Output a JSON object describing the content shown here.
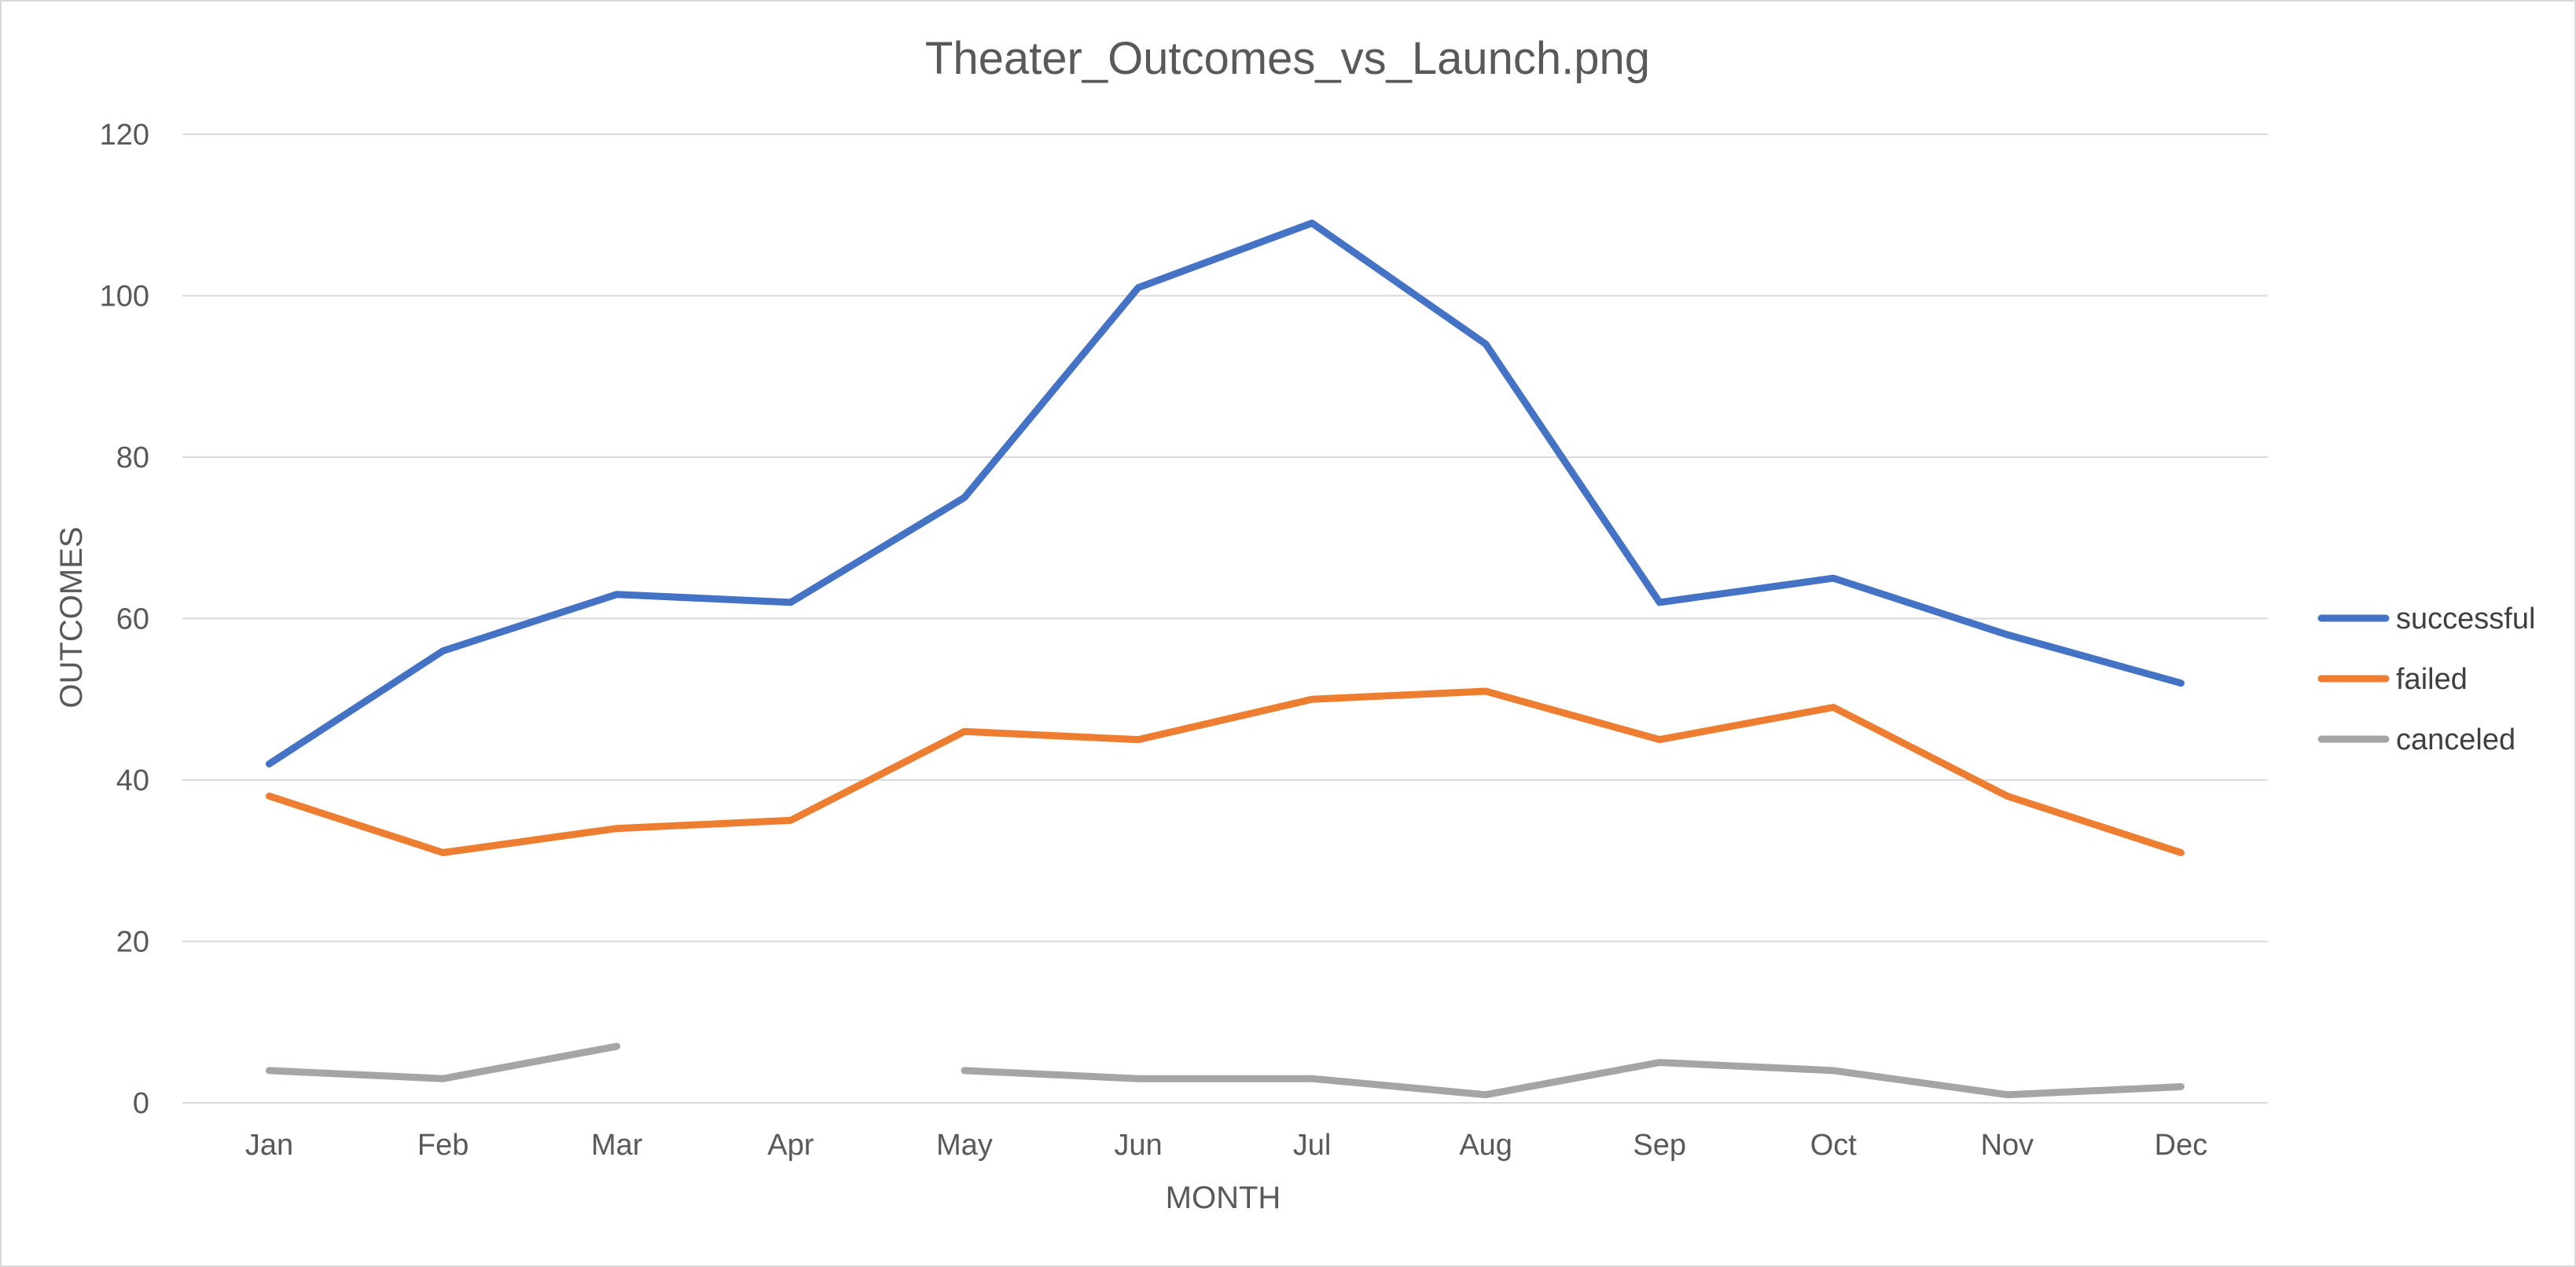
{
  "chart_data": {
    "type": "line",
    "title": "Theater_Outcomes_vs_Launch.png",
    "xlabel": "MONTH",
    "ylabel": "OUTCOMES",
    "categories": [
      "Jan",
      "Feb",
      "Mar",
      "Apr",
      "May",
      "Jun",
      "Jul",
      "Aug",
      "Sep",
      "Oct",
      "Nov",
      "Dec"
    ],
    "ylim": [
      0,
      120
    ],
    "yticks": [
      0,
      20,
      40,
      60,
      80,
      100,
      120
    ],
    "grid": true,
    "legend": "right",
    "series": [
      {
        "name": "successful",
        "color": "#4472C4",
        "values": [
          42,
          56,
          63,
          62,
          75,
          101,
          109,
          94,
          62,
          65,
          58,
          52
        ]
      },
      {
        "name": "failed",
        "color": "#ED7D31",
        "values": [
          38,
          31,
          34,
          35,
          46,
          45,
          50,
          51,
          45,
          49,
          38,
          31
        ]
      },
      {
        "name": "canceled",
        "color": "#A5A5A5",
        "values": [
          4,
          3,
          7,
          null,
          4,
          3,
          3,
          1,
          5,
          4,
          1,
          2
        ]
      }
    ]
  }
}
